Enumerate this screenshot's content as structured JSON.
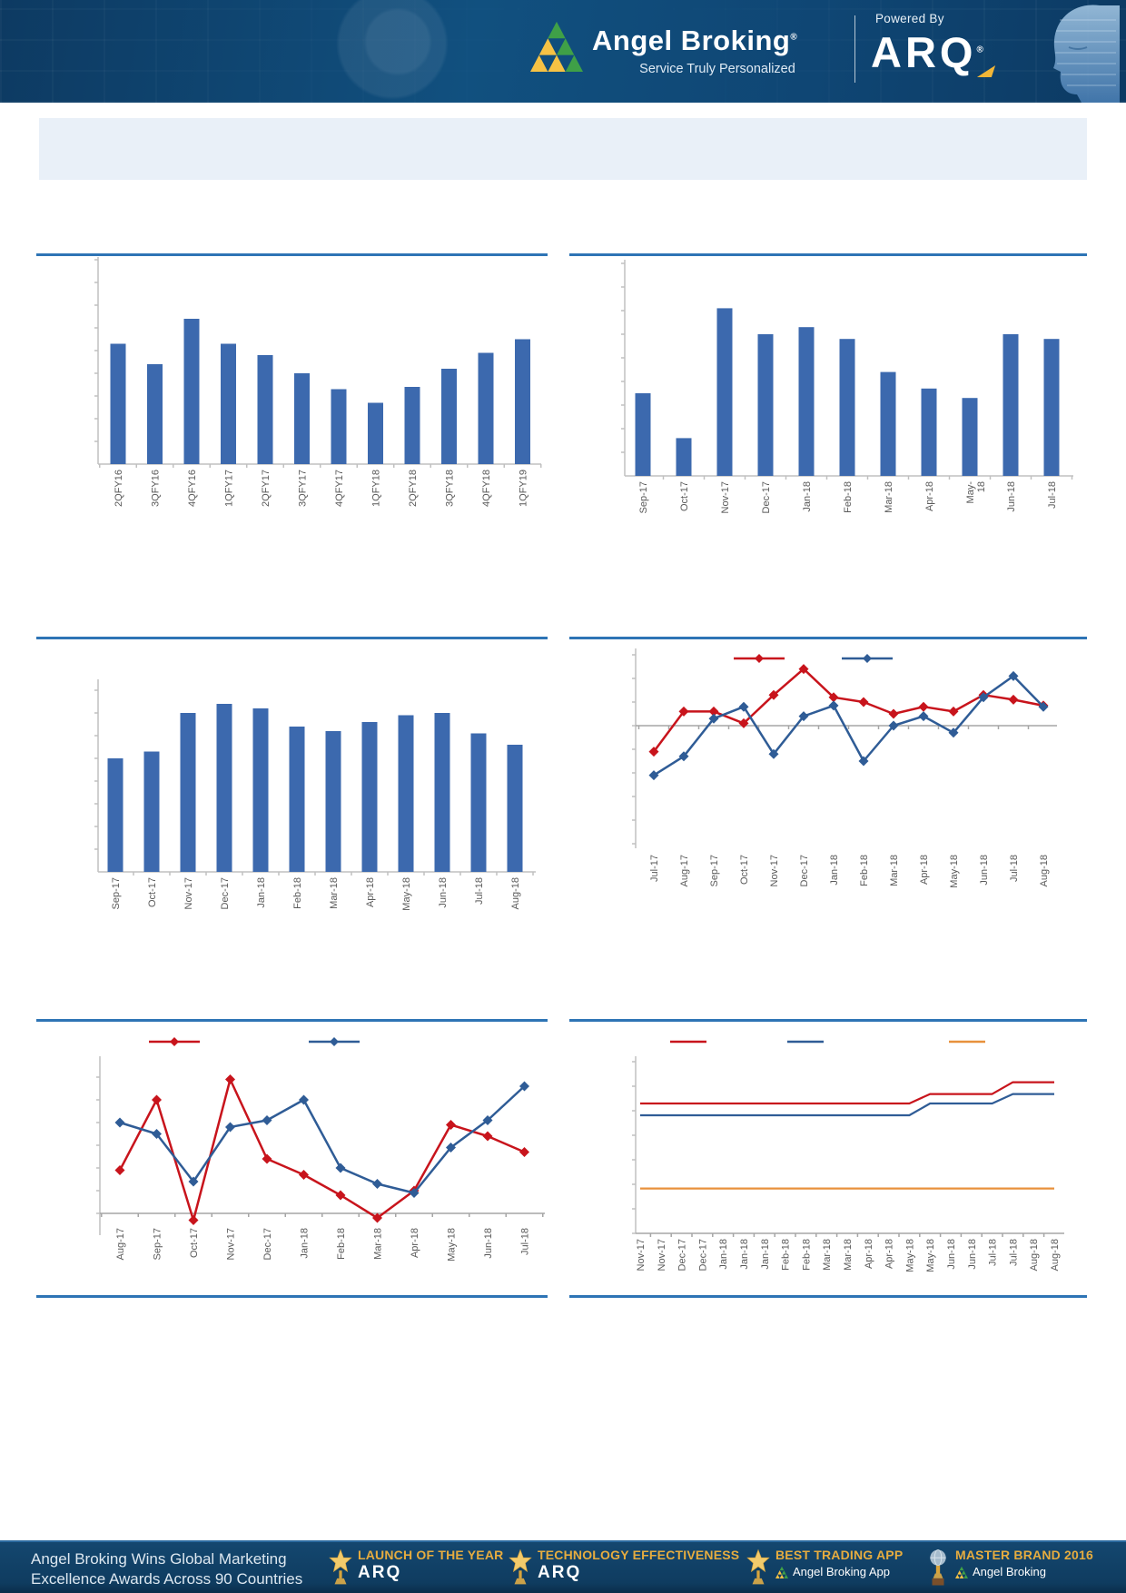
{
  "header": {
    "brand": "Angel Broking",
    "brand_reg": "®",
    "tagline": "Service Truly Personalized",
    "powered_by": "Powered By",
    "product": "ARQ",
    "product_reg": "®"
  },
  "title_band": {
    "text": ""
  },
  "colors": {
    "bar": "#3c69ae",
    "red": "#c8141c",
    "blue": "#2f5c96",
    "orange": "#e8913c",
    "divider": "#2e74b5",
    "axis": "#c0c0c0",
    "zero_line": "#a6a6a6",
    "label": "#595959",
    "header_bg": "#104e82",
    "footer_bg": "#0f3c60",
    "gold": "#e6ac3f",
    "band_bg": "#e9f0f8"
  },
  "chart_data": [
    {
      "id": "quarterly-bar",
      "type": "bar",
      "title": "",
      "categories": [
        "2QFY16",
        "3QFY16",
        "4QFY16",
        "1QFY17",
        "2QFY17",
        "3QFY17",
        "4QFY17",
        "1QFY18",
        "2QFY18",
        "3QFY18",
        "4QFY18",
        "1QFY19"
      ],
      "values": [
        5.3,
        4.4,
        6.4,
        5.3,
        4.8,
        4.0,
        3.3,
        2.7,
        3.4,
        4.2,
        4.9,
        5.5
      ],
      "y_axis_labels": [],
      "note": "y-axis shows tick marks only; values are relative units"
    },
    {
      "id": "monthly-bar-1",
      "type": "bar",
      "title": "",
      "categories": [
        "Sep-17",
        "Oct-17",
        "Nov-17",
        "Dec-17",
        "Jan-18",
        "Feb-18",
        "Mar-18",
        "Apr-18",
        "May-18",
        "Jun-18",
        "Jul-18"
      ],
      "values": [
        3.5,
        1.6,
        7.1,
        6.0,
        6.3,
        5.8,
        4.4,
        3.7,
        3.3,
        6.0,
        5.8
      ],
      "y_axis_labels": []
    },
    {
      "id": "monthly-bar-2",
      "type": "bar",
      "title": "",
      "categories": [
        "Sep-17",
        "Oct-17",
        "Nov-17",
        "Dec-17",
        "Jan-18",
        "Feb-18",
        "Mar-18",
        "Apr-18",
        "May-18",
        "Jun-18",
        "Jul-18",
        "Aug-18"
      ],
      "values": [
        5.0,
        5.3,
        7.0,
        7.4,
        7.2,
        6.4,
        6.2,
        6.6,
        6.9,
        7.0,
        6.1,
        5.6
      ],
      "y_axis_labels": []
    },
    {
      "id": "dual-line-1",
      "type": "line",
      "title": "",
      "legend_labels": [
        "",
        ""
      ],
      "zero_line": true,
      "categories": [
        "Jul-17",
        "Aug-17",
        "Sep-17",
        "Oct-17",
        "Nov-17",
        "Dec-17",
        "Jan-18",
        "Feb-18",
        "Mar-18",
        "Apr-18",
        "May-18",
        "Jun-18",
        "Jul-18",
        "Aug-18"
      ],
      "series": [
        {
          "name": "red-series",
          "color": "#c8141c",
          "marker": "diamond",
          "values": [
            -1.1,
            0.6,
            0.6,
            0.1,
            1.3,
            2.4,
            1.2,
            1.0,
            0.5,
            0.8,
            0.6,
            1.3,
            1.1,
            0.85
          ]
        },
        {
          "name": "blue-series",
          "color": "#2f5c96",
          "marker": "diamond",
          "values": [
            -2.1,
            -1.3,
            0.3,
            0.8,
            -1.2,
            0.4,
            0.85,
            -1.5,
            0.0,
            0.4,
            -0.3,
            1.2,
            2.1,
            0.8
          ]
        }
      ]
    },
    {
      "id": "dual-line-2",
      "type": "line",
      "title": "",
      "legend_labels": [
        "",
        ""
      ],
      "zero_line": true,
      "categories": [
        "Aug-17",
        "Sep-17",
        "Oct-17",
        "Nov-17",
        "Dec-17",
        "Jan-18",
        "Feb-18",
        "Mar-18",
        "Apr-18",
        "May-18",
        "Jun-18",
        "Jul-18"
      ],
      "series": [
        {
          "name": "red-series",
          "color": "#c8141c",
          "marker": "diamond",
          "values": [
            1.9,
            5.0,
            -0.3,
            5.9,
            2.4,
            1.7,
            0.8,
            -0.2,
            1.0,
            3.9,
            3.4,
            2.7
          ]
        },
        {
          "name": "blue-series",
          "color": "#2f5c96",
          "marker": "diamond",
          "values": [
            4.0,
            3.5,
            1.4,
            3.8,
            4.1,
            5.0,
            2.0,
            1.3,
            0.9,
            2.9,
            4.1,
            5.6
          ]
        }
      ]
    },
    {
      "id": "step-lines",
      "type": "line",
      "title": "",
      "legend_labels": [
        "",
        "",
        ""
      ],
      "categories": [
        "Nov-17",
        "Nov-17",
        "Dec-17",
        "Dec-17",
        "Jan-18",
        "Jan-18",
        "Jan-18",
        "Feb-18",
        "Feb-18",
        "Mar-18",
        "Mar-18",
        "Apr-18",
        "Apr-18",
        "May-18",
        "May-18",
        "Jun-18",
        "Jun-18",
        "Jul-18",
        "Jul-18",
        "Aug-18",
        "Aug-18"
      ],
      "series": [
        {
          "name": "red-step",
          "color": "#c8141c",
          "marker": "none",
          "values": [
            5.5,
            5.5,
            5.5,
            5.5,
            5.5,
            5.5,
            5.5,
            5.5,
            5.5,
            5.5,
            5.5,
            5.5,
            5.5,
            5.5,
            5.9,
            5.9,
            5.9,
            5.9,
            6.4,
            6.4,
            6.4
          ]
        },
        {
          "name": "blue-step",
          "color": "#2f5c96",
          "marker": "none",
          "values": [
            5.0,
            5.0,
            5.0,
            5.0,
            5.0,
            5.0,
            5.0,
            5.0,
            5.0,
            5.0,
            5.0,
            5.0,
            5.0,
            5.0,
            5.5,
            5.5,
            5.5,
            5.5,
            5.9,
            5.9,
            5.9
          ]
        },
        {
          "name": "orange-step",
          "color": "#e8913c",
          "marker": "none",
          "values": [
            1.9,
            1.9,
            1.9,
            1.9,
            1.9,
            1.9,
            1.9,
            1.9,
            1.9,
            1.9,
            1.9,
            1.9,
            1.9,
            1.9,
            1.9,
            1.9,
            1.9,
            1.9,
            1.9,
            1.9,
            1.9
          ]
        }
      ]
    }
  ],
  "footer": {
    "headline_line1": "Angel Broking Wins Global Marketing",
    "headline_line2": "Excellence Awards Across 90 Countries",
    "awards": [
      {
        "title": "LAUNCH OF THE YEAR",
        "subtitle": "ARQ",
        "icon": "star-trophy"
      },
      {
        "title": "TECHNOLOGY EFFECTIVENESS",
        "subtitle": "ARQ",
        "icon": "star-trophy"
      },
      {
        "title": "BEST TRADING APP",
        "subtitle": "Angel Broking App",
        "icon": "star-trophy"
      },
      {
        "title": "MASTER BRAND 2016",
        "subtitle": "Angel Broking",
        "icon": "globe-trophy"
      }
    ]
  }
}
